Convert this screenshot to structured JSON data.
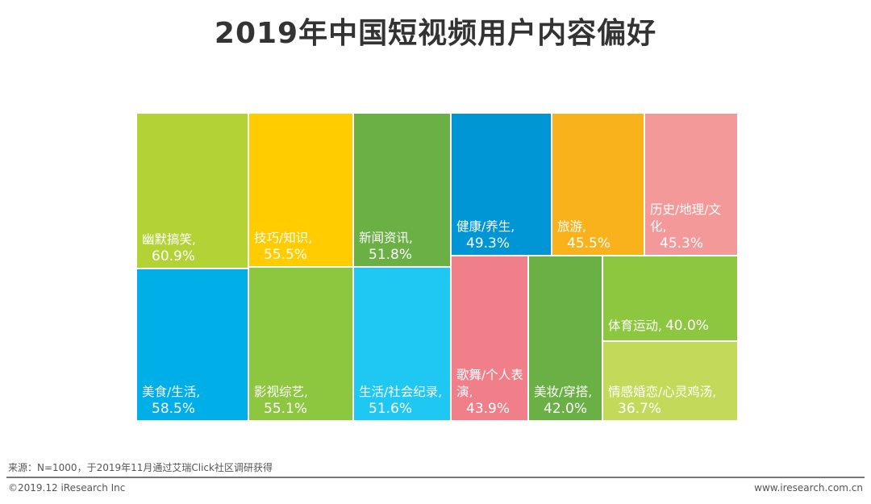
{
  "chart_data": {
    "type": "treemap",
    "title": "2019年中国短视频用户内容偏好",
    "items": [
      {
        "label": "幽默搞笑,",
        "value": 60.9,
        "value_label": "60.9%",
        "color": "#b2d235"
      },
      {
        "label": "技巧/知识,",
        "value": 55.5,
        "value_label": "55.5%",
        "color": "#ffcc00"
      },
      {
        "label": "新闻资讯,",
        "value": 51.8,
        "value_label": "51.8%",
        "color": "#6ab045"
      },
      {
        "label": "健康/养生,",
        "value": 49.3,
        "value_label": "49.3%",
        "color": "#0096d6"
      },
      {
        "label": "旅游,",
        "value": 45.5,
        "value_label": "45.5%",
        "color": "#f9b21b"
      },
      {
        "label": "历史/地理/文化,",
        "value": 45.3,
        "value_label": "45.3%",
        "color": "#f4999a"
      },
      {
        "label": "美食/生活,",
        "value": 58.5,
        "value_label": "58.5%",
        "color": "#00aee8"
      },
      {
        "label": "影视综艺,",
        "value": 55.1,
        "value_label": "55.1%",
        "color": "#8dc63f"
      },
      {
        "label": "生活/社会纪录,",
        "value": 51.6,
        "value_label": "51.6%",
        "color": "#1fc8f3"
      },
      {
        "label": "歌舞/个人表演,",
        "value": 43.9,
        "value_label": "43.9%",
        "color": "#f07f89"
      },
      {
        "label": "美妆/穿搭,",
        "value": 42.0,
        "value_label": "42.0%",
        "color": "#6ab045"
      },
      {
        "label": "体育运动,",
        "value": 40.0,
        "value_label": "40.0%",
        "color": "#8dc63f"
      },
      {
        "label": "情感婚恋/心灵鸡汤,",
        "value": 36.7,
        "value_label": "36.7%",
        "color": "#c2d95a"
      }
    ]
  },
  "footer": {
    "source": "来源：N=1000，于2019年11月通过艾瑞Click社区调研获得",
    "copyright": "©2019.12 iResearch Inc",
    "website": "www.iresearch.com.cn"
  }
}
